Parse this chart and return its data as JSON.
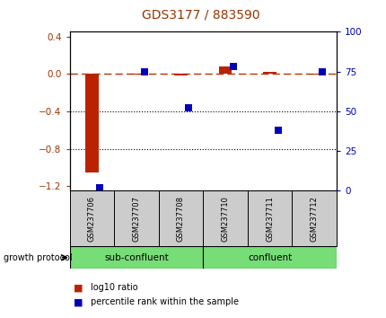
{
  "title": "GDS3177 / 883590",
  "samples": [
    "GSM237706",
    "GSM237707",
    "GSM237708",
    "GSM237710",
    "GSM237711",
    "GSM237712"
  ],
  "log10_ratio": [
    -1.05,
    -0.01,
    -0.02,
    0.08,
    0.02,
    -0.01
  ],
  "percentile_rank": [
    2,
    75,
    52,
    78,
    38,
    75
  ],
  "bar_color": "#bb2200",
  "dot_color": "#0000bb",
  "ylim_left": [
    -1.25,
    0.45
  ],
  "ylim_right": [
    0,
    100
  ],
  "yticks_left": [
    0.4,
    0.0,
    -0.4,
    -0.8,
    -1.2
  ],
  "yticks_right": [
    100,
    75,
    50,
    25,
    0
  ],
  "group1_label": "sub-confluent",
  "group2_label": "confluent",
  "group1_indices": [
    0,
    1,
    2
  ],
  "group2_indices": [
    3,
    4,
    5
  ],
  "group_color": "#77dd77",
  "protocol_label": "growth protocol",
  "legend_red": "log10 ratio",
  "legend_blue": "percentile rank within the sample",
  "title_color": "#993300",
  "left_axis_color": "#993300",
  "right_axis_color": "#0000bb",
  "ref_line_color": "#bb3300",
  "grid_color": "#000000",
  "label_bg_color": "#cccccc",
  "bar_width": 0.3,
  "dot_size": 30
}
